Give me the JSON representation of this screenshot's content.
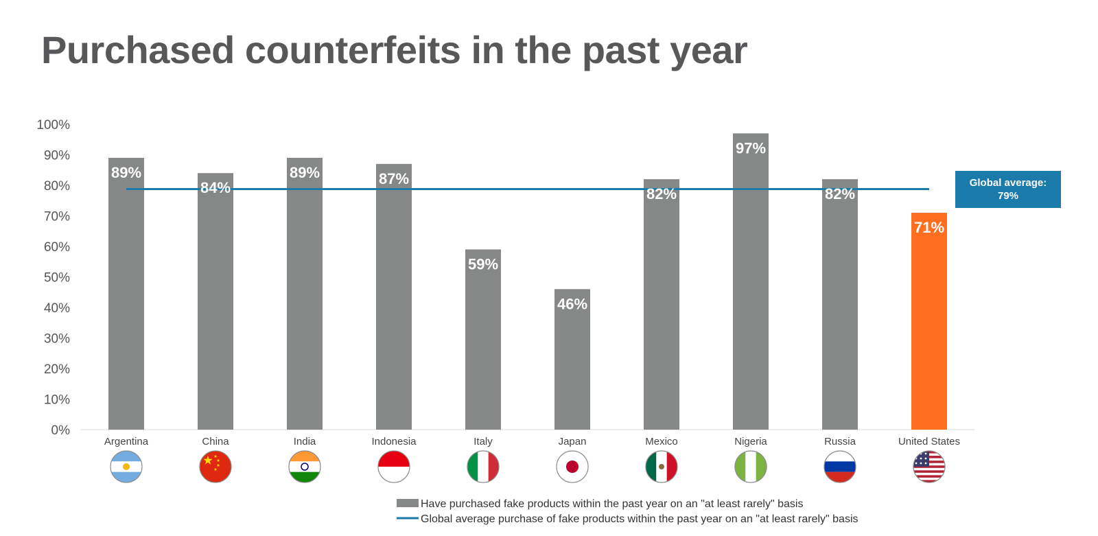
{
  "colors": {
    "bar": "#858887",
    "highlight": "#ff6f1f",
    "average_line": "#1a7aaa",
    "title": "#58585a"
  },
  "chart_data": {
    "type": "bar",
    "title": "Purchased counterfeits in the past year",
    "categories": [
      "Argentina",
      "China",
      "India",
      "Indonesia",
      "Italy",
      "Japan",
      "Mexico",
      "Nigeria",
      "Russia",
      "United States"
    ],
    "category_icons": [
      "flag-argentina-icon",
      "flag-china-icon",
      "flag-india-icon",
      "flag-indonesia-icon",
      "flag-italy-icon",
      "flag-japan-icon",
      "flag-mexico-icon",
      "flag-nigeria-icon",
      "flag-russia-icon",
      "flag-united-states-icon"
    ],
    "series": [
      {
        "name": "Have purchased fake products within the past year on an \"at least rarely\" basis",
        "values": [
          89,
          84,
          89,
          87,
          59,
          46,
          82,
          97,
          82,
          71
        ],
        "labels": [
          "89%",
          "84%",
          "89%",
          "87%",
          "59%",
          "46%",
          "82%",
          "97%",
          "82%",
          "71%"
        ]
      }
    ],
    "highlight_category": "United States",
    "average": {
      "name": "Global average purchase of fake products within the past year on an \"at least rarely\" basis",
      "value": 79,
      "label_line1": "Global average:",
      "label_line2": "79%"
    },
    "y_ticks": [
      "0%",
      "10%",
      "20%",
      "30%",
      "40%",
      "50%",
      "60%",
      "70%",
      "80%",
      "90%",
      "100%"
    ],
    "ylim": [
      0,
      100
    ],
    "grid": false,
    "legend_position": "bottom"
  }
}
